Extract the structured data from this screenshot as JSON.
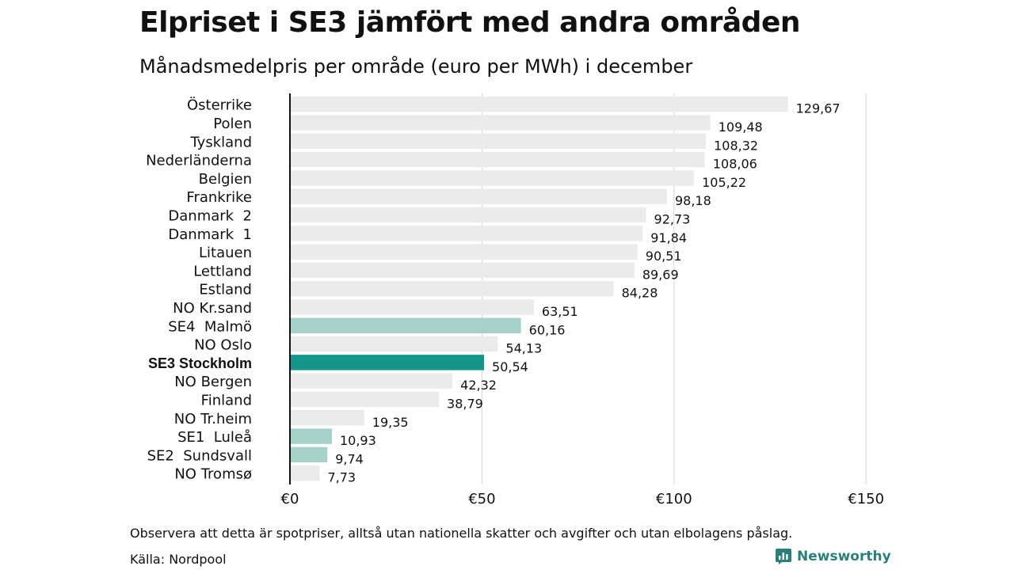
{
  "header": {
    "title": "Elpriset i SE3 jämfört med andra områden",
    "subtitle": "Månadsmedelpris per område (euro per MWh) i december"
  },
  "footer": {
    "note": "Observera att detta är spotpriser, alltså utan nationella skatter och avgifter och utan elbolagens påslag.",
    "source": "Källa: Nordpool",
    "brand": "Newsworthy"
  },
  "colors": {
    "default_bar": "#ebebeb",
    "swedish_area_bar": "#a6d1cb",
    "highlight_bar": "#14958a",
    "grid": "#d4d4d4",
    "axis": "#111111",
    "brand": "#2a7f7a"
  },
  "chart_data": {
    "type": "bar",
    "orientation": "horizontal",
    "categories": [
      "Österrike",
      "Polen",
      "Tyskland",
      "Nederländerna",
      "Belgien",
      "Frankrike",
      "Danmark  2",
      "Danmark  1",
      "Litauen",
      "Lettland",
      "Estland",
      "NO Kr.sand",
      "SE4  Malmö",
      "NO Oslo",
      "SE3 Stockholm",
      "NO Bergen",
      "Finland",
      "NO Tr.heim",
      "SE1  Luleå",
      "SE2  Sundsvall",
      "NO Tromsø"
    ],
    "values": [
      129.67,
      109.48,
      108.32,
      108.06,
      105.22,
      98.18,
      92.73,
      91.84,
      90.51,
      89.69,
      84.28,
      63.51,
      60.16,
      54.13,
      50.54,
      42.32,
      38.79,
      19.35,
      10.93,
      9.74,
      7.73
    ],
    "value_labels": [
      "129,67",
      "109,48",
      "108,32",
      "108,06",
      "105,22",
      "98,18",
      "92,73",
      "91,84",
      "90,51",
      "89,69",
      "84,28",
      "63,51",
      "60,16",
      "54,13",
      "50,54",
      "42,32",
      "38,79",
      "19,35",
      "10,93",
      "9,74",
      "7,73"
    ],
    "bar_style": [
      "default",
      "default",
      "default",
      "default",
      "default",
      "default",
      "default",
      "default",
      "default",
      "default",
      "default",
      "default",
      "swedish",
      "default",
      "highlight",
      "default",
      "default",
      "default",
      "swedish",
      "swedish",
      "default"
    ],
    "xlim": [
      0,
      150
    ],
    "xticks": [
      0,
      50,
      100,
      150
    ],
    "xtick_labels": [
      "€0",
      "€50",
      "€100",
      "€150"
    ],
    "grid": true,
    "legend": "none"
  }
}
